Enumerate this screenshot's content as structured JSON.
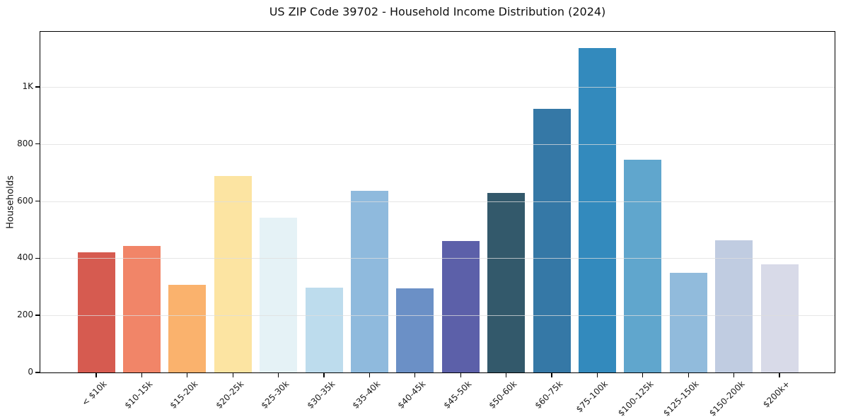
{
  "chart_data": {
    "type": "bar",
    "title": "US ZIP Code 39702 - Household Income Distribution (2024)",
    "xlabel": "",
    "ylabel": "Households",
    "categories": [
      "< $10k",
      "$10-15k",
      "$15-20k",
      "$20-25k",
      "$25-30k",
      "$30-35k",
      "$35-40k",
      "$40-45k",
      "$45-50k",
      "$50-60k",
      "$60-75k",
      "$75-100k",
      "$100-125k",
      "$125-150k",
      "$150-200k",
      "$200k+"
    ],
    "values": [
      420,
      444,
      307,
      687,
      541,
      297,
      636,
      294,
      461,
      628,
      922,
      1136,
      744,
      349,
      463,
      378
    ],
    "bar_colors": [
      "#d65b50",
      "#f18568",
      "#fab26d",
      "#fce4a2",
      "#e5f2f6",
      "#bddced",
      "#8fbadd",
      "#6b90c6",
      "#5c60a9",
      "#33596b",
      "#3578a6",
      "#338abd",
      "#60a6cd",
      "#91bbdc",
      "#c0cce1",
      "#d8dae8"
    ],
    "yticks": {
      "values": [
        0,
        200,
        400,
        600,
        800,
        1000
      ],
      "labels": [
        "0",
        "200",
        "400",
        "600",
        "800",
        "1K"
      ]
    },
    "ylim": [
      0,
      1193
    ],
    "x_tick_rotation_deg": 45,
    "grid": "horizontal gridlines at y ticks, light gray, drawn over bars",
    "legend": "none"
  },
  "colors": {
    "background": "#ffffff",
    "spine": "#000000",
    "grid": "#dddddd",
    "text": "#1a1a1a"
  }
}
